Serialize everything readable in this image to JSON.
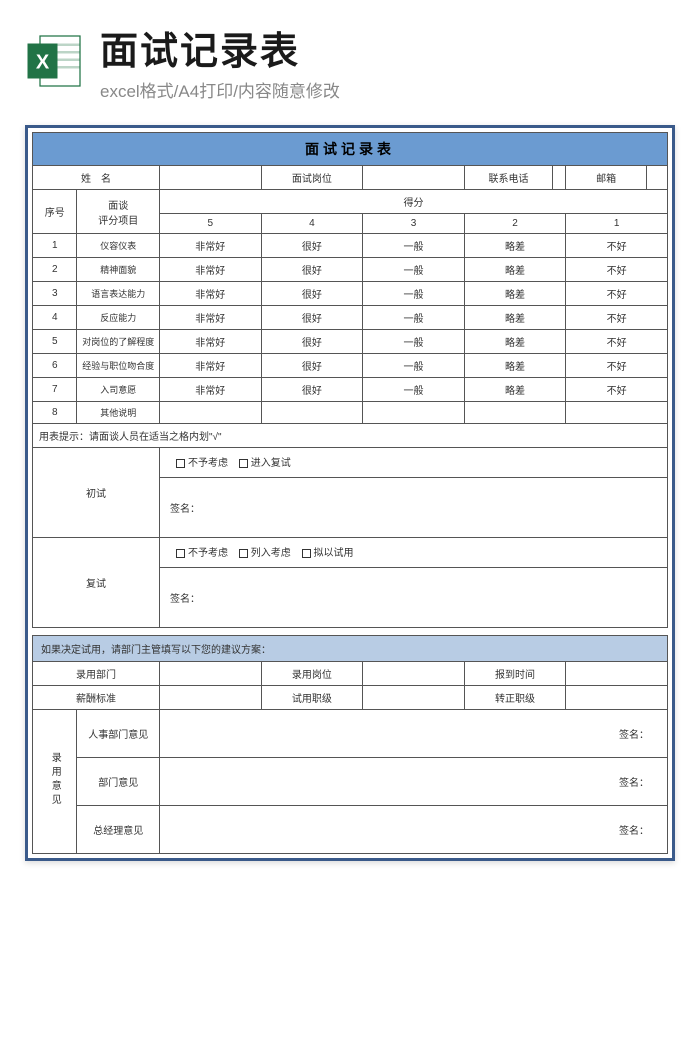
{
  "header": {
    "title": "面试记录表",
    "subtitle": "excel格式/A4打印/内容随意修改"
  },
  "form": {
    "title": "面试记录表",
    "info_labels": {
      "name": "姓　名",
      "position": "面试岗位",
      "phone": "联系电话",
      "email": "邮箱",
      "seq": "序号",
      "item": "面谈\n评分项目",
      "score": "得分"
    },
    "score_cols": [
      "5",
      "4",
      "3",
      "2",
      "1"
    ],
    "rows": [
      {
        "n": "1",
        "item": "仪容仪表",
        "v": [
          "非常好",
          "很好",
          "一般",
          "略差",
          "不好"
        ]
      },
      {
        "n": "2",
        "item": "精神面貌",
        "v": [
          "非常好",
          "很好",
          "一般",
          "略差",
          "不好"
        ]
      },
      {
        "n": "3",
        "item": "语言表达能力",
        "v": [
          "非常好",
          "很好",
          "一般",
          "略差",
          "不好"
        ]
      },
      {
        "n": "4",
        "item": "反应能力",
        "v": [
          "非常好",
          "很好",
          "一般",
          "略差",
          "不好"
        ]
      },
      {
        "n": "5",
        "item": "对岗位的了解程度",
        "v": [
          "非常好",
          "很好",
          "一般",
          "略差",
          "不好"
        ]
      },
      {
        "n": "6",
        "item": "经验与职位吻合度",
        "v": [
          "非常好",
          "很好",
          "一般",
          "略差",
          "不好"
        ]
      },
      {
        "n": "7",
        "item": "入司意愿",
        "v": [
          "非常好",
          "很好",
          "一般",
          "略差",
          "不好"
        ]
      },
      {
        "n": "8",
        "item": "其他说明",
        "v": [
          "",
          "",
          "",
          "",
          ""
        ]
      }
    ],
    "note": "用表提示：请面谈人员在适当之格内划\"√\"",
    "first": {
      "label": "初试",
      "opts": [
        "不予考虑",
        "进入复试"
      ],
      "sign": "签名："
    },
    "second": {
      "label": "复试",
      "opts": [
        "不予考虑",
        "列入考虑",
        "拟以试用"
      ],
      "sign": "签名："
    },
    "decision": {
      "title": "如果决定试用，请部门主管填写以下您的建议方案：",
      "labels": {
        "dept": "录用部门",
        "pos": "录用岗位",
        "date": "报到时间",
        "salary": "薪酬标准",
        "trial": "试用职级",
        "formal": "转正职级"
      }
    },
    "opinion": {
      "header": "录用意见",
      "rows": [
        "人事部门意见",
        "部门意见",
        "总经理意见"
      ],
      "sign": "签名："
    }
  },
  "colors": {
    "border": "#3a5a8a",
    "title_bg": "#6b9bd1",
    "section_bg": "#b8cce4",
    "icon_green": "#217346"
  }
}
